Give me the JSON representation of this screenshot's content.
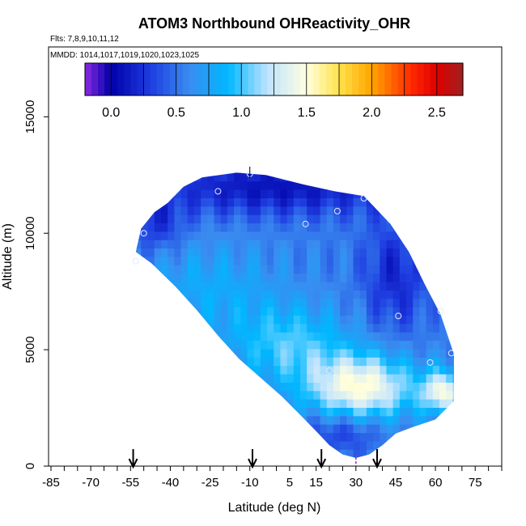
{
  "chart_data": {
    "type": "heatmap",
    "title": "ATOM3 Northbound OHReactivity_OHR",
    "subtitle_flights": "Flts: 7,8,9,10,11,12",
    "subtitle_dates": "MMDD: 1014,1017,1019,1020,1023,1025",
    "xlabel": "Latitude (deg N)",
    "ylabel": "Altitude (m)",
    "xlim": [
      -85,
      85
    ],
    "ylim": [
      0,
      18000
    ],
    "x_tick_labels": [
      "-85",
      "-70",
      "-55",
      "-40",
      "-25",
      "-10",
      "5",
      "15",
      "30",
      "45",
      "60",
      "75"
    ],
    "x_tick_values": [
      -85,
      -70,
      -55,
      -40,
      -25,
      -10,
      5,
      15,
      30,
      45,
      60,
      75
    ],
    "y_tick_labels": [
      "0",
      "5000",
      "10000",
      "15000"
    ],
    "y_tick_values": [
      0,
      5000,
      10000,
      15000
    ],
    "colorbar": {
      "range": [
        -0.2,
        2.7
      ],
      "tick_labels": [
        "0.0",
        "0.5",
        "1.0",
        "1.5",
        "2.0",
        "2.5"
      ],
      "tick_values": [
        0.0,
        0.5,
        1.0,
        1.5,
        2.0,
        2.5
      ],
      "stops": [
        {
          "v": -0.2,
          "c": "#8a2be2"
        },
        {
          "v": 0.0,
          "c": "#0000a8"
        },
        {
          "v": 0.3,
          "c": "#1e3ce0"
        },
        {
          "v": 0.6,
          "c": "#3a8cf0"
        },
        {
          "v": 0.9,
          "c": "#00b8ff"
        },
        {
          "v": 1.2,
          "c": "#bfe3ff"
        },
        {
          "v": 1.5,
          "c": "#ffffe0"
        },
        {
          "v": 1.75,
          "c": "#ffe24a"
        },
        {
          "v": 2.0,
          "c": "#ffa500"
        },
        {
          "v": 2.3,
          "c": "#ff2a00"
        },
        {
          "v": 2.5,
          "c": "#e00000"
        },
        {
          "v": 2.7,
          "c": "#a02020"
        }
      ]
    },
    "profile_markers_lat": [
      -54,
      -9,
      17,
      38
    ],
    "curtain_outline": [
      [
        -41,
        11300
      ],
      [
        -35,
        12000
      ],
      [
        -28,
        12400
      ],
      [
        -15,
        12600
      ],
      [
        -4,
        12500
      ],
      [
        10,
        12100
      ],
      [
        22,
        11800
      ],
      [
        33,
        11600
      ],
      [
        43,
        10400
      ],
      [
        50,
        9200
      ],
      [
        56,
        7800
      ],
      [
        62,
        6500
      ],
      [
        67,
        4800
      ],
      [
        67,
        2800
      ],
      [
        60,
        2000
      ],
      [
        52,
        1700
      ],
      [
        45,
        1400
      ],
      [
        40,
        900
      ],
      [
        35,
        500
      ],
      [
        30,
        350
      ],
      [
        25,
        500
      ],
      [
        20,
        900
      ],
      [
        15,
        1500
      ],
      [
        9,
        2200
      ],
      [
        2,
        3000
      ],
      [
        -6,
        3800
      ],
      [
        -14,
        4600
      ],
      [
        -22,
        5600
      ],
      [
        -30,
        6700
      ],
      [
        -38,
        7700
      ],
      [
        -47,
        8700
      ],
      [
        -53,
        9200
      ],
      [
        -51,
        10200
      ],
      [
        -46,
        10900
      ]
    ],
    "value_field": {
      "base_value": 0.55,
      "blobs": [
        {
          "lat": 32,
          "alt": 3400,
          "slat": 20,
          "salt": 1400,
          "amp": 0.95
        },
        {
          "lat": 63,
          "alt": 3200,
          "slat": 8,
          "salt": 900,
          "amp": 0.85
        },
        {
          "lat": 5,
          "alt": 5200,
          "slat": 22,
          "salt": 1700,
          "amp": 0.45
        },
        {
          "lat": -25,
          "alt": 7600,
          "slat": 25,
          "salt": 2000,
          "amp": 0.25
        },
        {
          "lat": 0,
          "alt": 12000,
          "slat": 50,
          "salt": 1200,
          "amp": -0.45
        },
        {
          "lat": 45,
          "alt": 8200,
          "slat": 12,
          "salt": 2400,
          "amp": -0.35
        },
        {
          "lat": -45,
          "alt": 10400,
          "slat": 10,
          "salt": 1100,
          "amp": -0.3
        },
        {
          "lat": 25,
          "alt": 1500,
          "slat": 15,
          "salt": 900,
          "amp": -0.3
        }
      ]
    },
    "sample_points": [
      {
        "lat": -53,
        "alt": 8800
      },
      {
        "lat": -50,
        "alt": 10000
      },
      {
        "lat": -22,
        "alt": 11800
      },
      {
        "lat": -10,
        "alt": 12550
      },
      {
        "lat": 11,
        "alt": 10400
      },
      {
        "lat": 23,
        "alt": 10950
      },
      {
        "lat": 33,
        "alt": 11500
      },
      {
        "lat": 46,
        "alt": 6450
      },
      {
        "lat": 62,
        "alt": 6650
      },
      {
        "lat": 58,
        "alt": 4450
      },
      {
        "lat": 66,
        "alt": 4850
      },
      {
        "lat": 20,
        "alt": 4100
      }
    ]
  },
  "colors": {
    "axis": "#000000",
    "background": "#ffffff",
    "points": "#e8e8ff",
    "dashed_marker": "#8a2be2"
  }
}
